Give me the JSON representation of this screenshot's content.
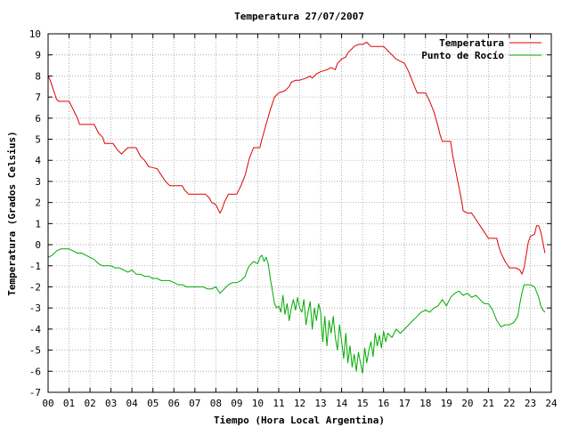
{
  "chart_data": {
    "type": "line",
    "title": "Temperatura 27/07/2007",
    "xlabel": "Tiempo (Hora Local Argentina)",
    "ylabel": "Temperatura (Grados Celsius)",
    "xlim": [
      0,
      24
    ],
    "ylim": [
      -7,
      10
    ],
    "grid": true,
    "legend_position": "top-right",
    "x_tick_labels": [
      "00",
      "01",
      "02",
      "03",
      "04",
      "05",
      "06",
      "07",
      "08",
      "09",
      "10",
      "11",
      "12",
      "13",
      "14",
      "15",
      "16",
      "17",
      "18",
      "19",
      "20",
      "21",
      "22",
      "23",
      "24"
    ],
    "y_tick_labels": [
      "-7",
      "-6",
      "-5",
      "-4",
      "-3",
      "-2",
      "-1",
      "0",
      "1",
      "2",
      "3",
      "4",
      "5",
      "6",
      "7",
      "8",
      "9",
      "10"
    ],
    "series": [
      {
        "name": "Temperatura",
        "color": "#dd0000",
        "points": [
          [
            0.0,
            8.0
          ],
          [
            0.1,
            7.8
          ],
          [
            0.2,
            7.5
          ],
          [
            0.3,
            7.2
          ],
          [
            0.4,
            6.9
          ],
          [
            0.5,
            6.8
          ],
          [
            1.0,
            6.8
          ],
          [
            1.1,
            6.6
          ],
          [
            1.2,
            6.4
          ],
          [
            1.3,
            6.2
          ],
          [
            1.4,
            6.0
          ],
          [
            1.5,
            5.7
          ],
          [
            2.0,
            5.7
          ],
          [
            2.2,
            5.7
          ],
          [
            2.4,
            5.3
          ],
          [
            2.6,
            5.1
          ],
          [
            2.7,
            4.8
          ],
          [
            3.1,
            4.8
          ],
          [
            3.3,
            4.5
          ],
          [
            3.5,
            4.3
          ],
          [
            3.7,
            4.5
          ],
          [
            3.8,
            4.6
          ],
          [
            4.2,
            4.6
          ],
          [
            4.4,
            4.2
          ],
          [
            4.6,
            4.0
          ],
          [
            4.8,
            3.7
          ],
          [
            5.2,
            3.6
          ],
          [
            5.4,
            3.3
          ],
          [
            5.6,
            3.0
          ],
          [
            5.8,
            2.8
          ],
          [
            6.4,
            2.8
          ],
          [
            6.5,
            2.6
          ],
          [
            6.7,
            2.4
          ],
          [
            7.2,
            2.4
          ],
          [
            7.5,
            2.4
          ],
          [
            7.7,
            2.2
          ],
          [
            7.8,
            2.0
          ],
          [
            8.0,
            1.9
          ],
          [
            8.1,
            1.7
          ],
          [
            8.2,
            1.5
          ],
          [
            8.3,
            1.7
          ],
          [
            8.4,
            2.0
          ],
          [
            8.6,
            2.4
          ],
          [
            9.0,
            2.4
          ],
          [
            9.2,
            2.8
          ],
          [
            9.4,
            3.3
          ],
          [
            9.6,
            4.1
          ],
          [
            9.8,
            4.6
          ],
          [
            10.1,
            4.6
          ],
          [
            10.2,
            5.0
          ],
          [
            10.4,
            5.7
          ],
          [
            10.6,
            6.4
          ],
          [
            10.8,
            7.0
          ],
          [
            11.0,
            7.2
          ],
          [
            11.3,
            7.3
          ],
          [
            11.5,
            7.5
          ],
          [
            11.6,
            7.7
          ],
          [
            11.8,
            7.8
          ],
          [
            12.0,
            7.8
          ],
          [
            12.3,
            7.9
          ],
          [
            12.5,
            8.0
          ],
          [
            12.6,
            7.9
          ],
          [
            12.8,
            8.1
          ],
          [
            13.0,
            8.2
          ],
          [
            13.3,
            8.3
          ],
          [
            13.5,
            8.4
          ],
          [
            13.7,
            8.3
          ],
          [
            13.8,
            8.6
          ],
          [
            14.0,
            8.8
          ],
          [
            14.2,
            8.9
          ],
          [
            14.3,
            9.1
          ],
          [
            14.5,
            9.3
          ],
          [
            14.6,
            9.4
          ],
          [
            14.8,
            9.5
          ],
          [
            15.0,
            9.5
          ],
          [
            15.2,
            9.6
          ],
          [
            15.4,
            9.4
          ],
          [
            15.6,
            9.4
          ],
          [
            15.8,
            9.4
          ],
          [
            16.0,
            9.4
          ],
          [
            16.2,
            9.2
          ],
          [
            16.4,
            9.0
          ],
          [
            16.6,
            8.8
          ],
          [
            16.8,
            8.7
          ],
          [
            17.0,
            8.6
          ],
          [
            17.2,
            8.2
          ],
          [
            17.4,
            7.7
          ],
          [
            17.6,
            7.2
          ],
          [
            18.0,
            7.2
          ],
          [
            18.2,
            6.8
          ],
          [
            18.4,
            6.3
          ],
          [
            18.6,
            5.6
          ],
          [
            18.7,
            5.2
          ],
          [
            18.8,
            4.9
          ],
          [
            19.2,
            4.9
          ],
          [
            19.3,
            4.2
          ],
          [
            19.5,
            3.2
          ],
          [
            19.7,
            2.2
          ],
          [
            19.8,
            1.6
          ],
          [
            20.0,
            1.5
          ],
          [
            20.2,
            1.5
          ],
          [
            20.4,
            1.2
          ],
          [
            20.6,
            0.9
          ],
          [
            20.8,
            0.6
          ],
          [
            21.0,
            0.3
          ],
          [
            21.2,
            0.3
          ],
          [
            21.4,
            0.3
          ],
          [
            21.5,
            -0.1
          ],
          [
            21.6,
            -0.4
          ],
          [
            21.8,
            -0.8
          ],
          [
            22.0,
            -1.1
          ],
          [
            22.3,
            -1.1
          ],
          [
            22.5,
            -1.2
          ],
          [
            22.6,
            -1.4
          ],
          [
            22.7,
            -1.1
          ],
          [
            22.8,
            -0.5
          ],
          [
            22.9,
            0.1
          ],
          [
            23.0,
            0.4
          ],
          [
            23.2,
            0.5
          ],
          [
            23.3,
            0.9
          ],
          [
            23.4,
            0.9
          ],
          [
            23.5,
            0.6
          ],
          [
            23.6,
            0.1
          ],
          [
            23.7,
            -0.4
          ]
        ]
      },
      {
        "name": "Punto de Rocío",
        "color": "#00aa00",
        "points": [
          [
            0.0,
            -0.6
          ],
          [
            0.2,
            -0.5
          ],
          [
            0.4,
            -0.3
          ],
          [
            0.6,
            -0.2
          ],
          [
            0.8,
            -0.2
          ],
          [
            1.0,
            -0.2
          ],
          [
            1.2,
            -0.3
          ],
          [
            1.4,
            -0.4
          ],
          [
            1.6,
            -0.4
          ],
          [
            1.8,
            -0.5
          ],
          [
            2.0,
            -0.6
          ],
          [
            2.2,
            -0.7
          ],
          [
            2.4,
            -0.9
          ],
          [
            2.6,
            -1.0
          ],
          [
            2.8,
            -1.0
          ],
          [
            3.0,
            -1.0
          ],
          [
            3.2,
            -1.1
          ],
          [
            3.4,
            -1.1
          ],
          [
            3.6,
            -1.2
          ],
          [
            3.8,
            -1.3
          ],
          [
            4.0,
            -1.2
          ],
          [
            4.2,
            -1.4
          ],
          [
            4.4,
            -1.4
          ],
          [
            4.6,
            -1.5
          ],
          [
            4.8,
            -1.5
          ],
          [
            5.0,
            -1.6
          ],
          [
            5.2,
            -1.6
          ],
          [
            5.4,
            -1.7
          ],
          [
            5.6,
            -1.7
          ],
          [
            5.8,
            -1.7
          ],
          [
            6.0,
            -1.8
          ],
          [
            6.2,
            -1.9
          ],
          [
            6.4,
            -1.9
          ],
          [
            6.6,
            -2.0
          ],
          [
            6.8,
            -2.0
          ],
          [
            7.0,
            -2.0
          ],
          [
            7.2,
            -2.0
          ],
          [
            7.4,
            -2.0
          ],
          [
            7.6,
            -2.1
          ],
          [
            7.8,
            -2.1
          ],
          [
            8.0,
            -2.0
          ],
          [
            8.2,
            -2.3
          ],
          [
            8.4,
            -2.1
          ],
          [
            8.6,
            -1.9
          ],
          [
            8.8,
            -1.8
          ],
          [
            9.0,
            -1.8
          ],
          [
            9.2,
            -1.7
          ],
          [
            9.4,
            -1.5
          ],
          [
            9.5,
            -1.2
          ],
          [
            9.6,
            -1.0
          ],
          [
            9.8,
            -0.8
          ],
          [
            10.0,
            -0.9
          ],
          [
            10.1,
            -0.6
          ],
          [
            10.2,
            -0.5
          ],
          [
            10.3,
            -0.8
          ],
          [
            10.4,
            -0.6
          ],
          [
            10.5,
            -0.9
          ],
          [
            10.6,
            -1.6
          ],
          [
            10.7,
            -2.2
          ],
          [
            10.8,
            -2.8
          ],
          [
            10.9,
            -3.0
          ],
          [
            11.0,
            -2.9
          ],
          [
            11.1,
            -3.2
          ],
          [
            11.2,
            -2.4
          ],
          [
            11.3,
            -3.3
          ],
          [
            11.4,
            -2.8
          ],
          [
            11.5,
            -3.6
          ],
          [
            11.6,
            -3.0
          ],
          [
            11.7,
            -2.6
          ],
          [
            11.8,
            -3.1
          ],
          [
            11.9,
            -2.5
          ],
          [
            12.0,
            -3.0
          ],
          [
            12.1,
            -3.2
          ],
          [
            12.2,
            -2.6
          ],
          [
            12.3,
            -3.8
          ],
          [
            12.4,
            -3.2
          ],
          [
            12.5,
            -2.7
          ],
          [
            12.6,
            -4.0
          ],
          [
            12.7,
            -3.0
          ],
          [
            12.8,
            -3.6
          ],
          [
            12.9,
            -2.8
          ],
          [
            13.0,
            -3.2
          ],
          [
            13.1,
            -4.6
          ],
          [
            13.2,
            -3.4
          ],
          [
            13.3,
            -4.8
          ],
          [
            13.4,
            -3.6
          ],
          [
            13.5,
            -4.2
          ],
          [
            13.6,
            -3.4
          ],
          [
            13.7,
            -4.4
          ],
          [
            13.8,
            -5.0
          ],
          [
            13.9,
            -3.8
          ],
          [
            14.0,
            -4.6
          ],
          [
            14.1,
            -5.4
          ],
          [
            14.2,
            -4.2
          ],
          [
            14.3,
            -5.6
          ],
          [
            14.4,
            -4.8
          ],
          [
            14.5,
            -5.8
          ],
          [
            14.6,
            -5.2
          ],
          [
            14.7,
            -6.0
          ],
          [
            14.8,
            -5.1
          ],
          [
            14.9,
            -5.6
          ],
          [
            15.0,
            -6.1
          ],
          [
            15.1,
            -4.9
          ],
          [
            15.2,
            -5.6
          ],
          [
            15.3,
            -5.0
          ],
          [
            15.4,
            -4.6
          ],
          [
            15.5,
            -5.3
          ],
          [
            15.6,
            -4.2
          ],
          [
            15.7,
            -4.8
          ],
          [
            15.8,
            -4.3
          ],
          [
            15.9,
            -4.9
          ],
          [
            16.0,
            -4.1
          ],
          [
            16.1,
            -4.6
          ],
          [
            16.2,
            -4.2
          ],
          [
            16.4,
            -4.4
          ],
          [
            16.6,
            -4.0
          ],
          [
            16.8,
            -4.2
          ],
          [
            17.0,
            -4.0
          ],
          [
            17.2,
            -3.8
          ],
          [
            17.4,
            -3.6
          ],
          [
            17.6,
            -3.4
          ],
          [
            17.8,
            -3.2
          ],
          [
            18.0,
            -3.1
          ],
          [
            18.2,
            -3.2
          ],
          [
            18.4,
            -3.0
          ],
          [
            18.6,
            -2.9
          ],
          [
            18.8,
            -2.6
          ],
          [
            19.0,
            -2.9
          ],
          [
            19.2,
            -2.5
          ],
          [
            19.4,
            -2.3
          ],
          [
            19.6,
            -2.2
          ],
          [
            19.8,
            -2.4
          ],
          [
            20.0,
            -2.3
          ],
          [
            20.2,
            -2.5
          ],
          [
            20.4,
            -2.4
          ],
          [
            20.6,
            -2.6
          ],
          [
            20.8,
            -2.8
          ],
          [
            21.0,
            -2.8
          ],
          [
            21.2,
            -3.1
          ],
          [
            21.4,
            -3.6
          ],
          [
            21.6,
            -3.9
          ],
          [
            21.8,
            -3.8
          ],
          [
            22.0,
            -3.8
          ],
          [
            22.2,
            -3.7
          ],
          [
            22.4,
            -3.4
          ],
          [
            22.5,
            -2.8
          ],
          [
            22.6,
            -2.3
          ],
          [
            22.7,
            -1.9
          ],
          [
            22.8,
            -1.9
          ],
          [
            23.0,
            -1.9
          ],
          [
            23.2,
            -2.0
          ],
          [
            23.4,
            -2.5
          ],
          [
            23.5,
            -2.9
          ],
          [
            23.6,
            -3.1
          ],
          [
            23.7,
            -3.2
          ]
        ]
      }
    ]
  }
}
